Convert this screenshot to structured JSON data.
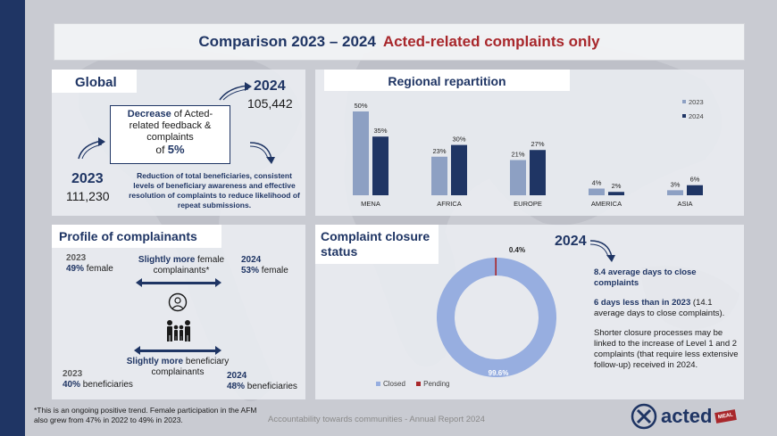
{
  "colors": {
    "navy": "#1f3564",
    "red": "#a8272b",
    "bar2023": "#8da0c3",
    "bar2024": "#1f3564",
    "donut_closed": "#97aee0",
    "donut_pending": "#a8272b"
  },
  "title": {
    "main": "Comparison 2023 – 2024",
    "accent": "Acted-related complaints only"
  },
  "global": {
    "tab": "Global",
    "year2024": "2024",
    "value2024": "105,442",
    "box_bold": "Decrease",
    "box_text": " of Acted-related feedback & complaints",
    "box_of": "of ",
    "box_pct": "5%",
    "year2023": "2023",
    "value2023": "111,230",
    "note": "Reduction of total beneficiaries, consistent levels of beneficiary awareness and effective resolution of complaints to reduce likelihood of repeat submissions."
  },
  "regional": {
    "tab": "Regional repartition",
    "chart_data": {
      "type": "bar",
      "categories": [
        "MENA",
        "AFRICA",
        "EUROPE",
        "AMERICA",
        "ASIA"
      ],
      "series": [
        {
          "name": "2023",
          "values": [
            50,
            23,
            21,
            4,
            3
          ],
          "labels": [
            "50%",
            "23%",
            "21%",
            "4%",
            "3%"
          ]
        },
        {
          "name": "2024",
          "values": [
            35,
            30,
            27,
            2,
            6
          ],
          "labels": [
            "35%",
            "30%",
            "27%",
            "2%",
            "6%"
          ]
        }
      ],
      "ylim": [
        0,
        50
      ],
      "legend": "top-right"
    }
  },
  "profile": {
    "tab": "Profile of complainants",
    "f2023_year": "2023",
    "f2023_pct": "49%",
    "f2023_label": " female",
    "f_mid_bold": "Slightly more",
    "f_mid_text": " female complainants*",
    "f2024_year": "2024",
    "f2024_pct": "53%",
    "f2024_label": " female",
    "b_mid_bold": "Slightly more",
    "b_mid_text": " beneficiary complainants",
    "b2023_year": "2023",
    "b2023_pct": "40%",
    "b2023_label": " beneficiaries",
    "b2024_year": "2024",
    "b2024_pct": "48%",
    "b2024_label": " beneficiaries"
  },
  "closure": {
    "tab": "Complaint closure status",
    "chart_data": {
      "type": "pie",
      "categories": [
        "Closed",
        "Pending"
      ],
      "values": [
        99.6,
        0.4
      ],
      "labels": [
        "99.6%",
        "0.4%"
      ],
      "legend": "bottom"
    },
    "year": "2024",
    "p1_bold": "8.4 average days to close complaints",
    "p2_bold": "6 days less than in 2023",
    "p2_text": " (14.1 average days to close complaints).",
    "p3": "Shorter closure processes may be linked to the increase of Level 1 and 2 complaints (that require less extensive follow-up) received in 2024."
  },
  "footnote": "*This is an ongoing positive trend. Female participation in the AFM also grew from 47% in 2022 to 49% in 2023.",
  "footer": "Accountability towards communities - Annual Report 2024",
  "logo": {
    "text": "acted",
    "badge": "MEAL"
  }
}
